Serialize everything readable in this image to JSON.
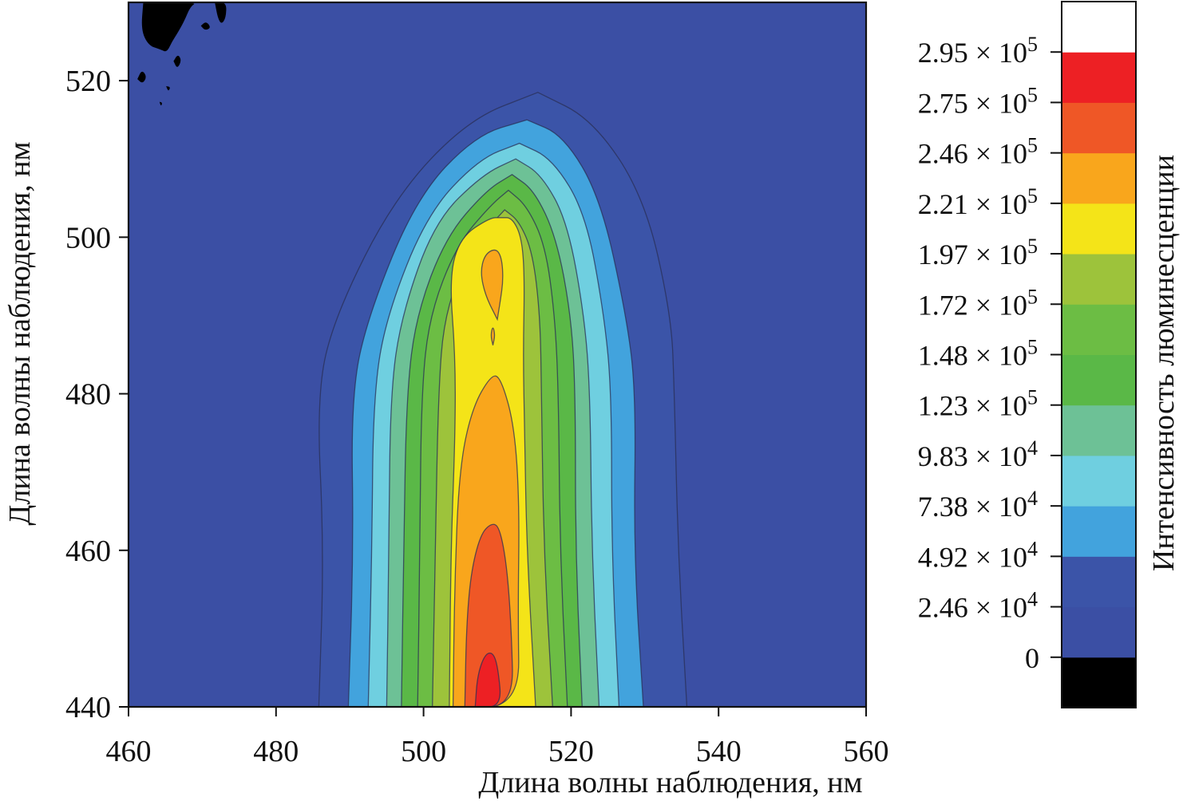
{
  "chart_data": {
    "type": "heatmap",
    "subtype": "filled-contour",
    "xlabel": "Длина волны наблюдения, нм",
    "ylabel": "Длина волны наблюдения, нм",
    "colorbar_label": "Интенсивность люминесценции",
    "xlim": [
      460,
      560
    ],
    "ylim": [
      440,
      530
    ],
    "x_ticks": [
      460,
      480,
      500,
      520,
      540,
      560
    ],
    "y_ticks": [
      440,
      460,
      480,
      500,
      520
    ],
    "x_tick_labels": [
      "460",
      "480",
      "500",
      "520",
      "540",
      "560"
    ],
    "y_tick_labels": [
      "440",
      "460",
      "480",
      "500",
      "520"
    ],
    "levels": [
      {
        "mantissa": "0",
        "exponent": ""
      },
      {
        "mantissa": "2.46 × 10",
        "exponent": "4"
      },
      {
        "mantissa": "4.92 × 10",
        "exponent": "4"
      },
      {
        "mantissa": "7.38 × 10",
        "exponent": "4"
      },
      {
        "mantissa": "9.83 × 10",
        "exponent": "4"
      },
      {
        "mantissa": "1.23 × 10",
        "exponent": "5"
      },
      {
        "mantissa": "1.48 × 10",
        "exponent": "5"
      },
      {
        "mantissa": "1.72 × 10",
        "exponent": "5"
      },
      {
        "mantissa": "1.97 × 10",
        "exponent": "5"
      },
      {
        "mantissa": "2.21 × 10",
        "exponent": "5"
      },
      {
        "mantissa": "2.46 × 10",
        "exponent": "5"
      },
      {
        "mantissa": "2.75 × 10",
        "exponent": "5"
      },
      {
        "mantissa": "2.95 × 10",
        "exponent": "5"
      }
    ],
    "level_values": [
      0,
      24600,
      49200,
      73800,
      98300,
      123000,
      148000,
      172000,
      197000,
      221000,
      246000,
      275000,
      295000
    ],
    "colorbar_colors": [
      "#000000",
      "#3b4fa4",
      "#3b54a8",
      "#42a3dd",
      "#6fcfe0",
      "#6dc196",
      "#5ab847",
      "#6cbd44",
      "#9dc33b",
      "#f4e418",
      "#f9a61c",
      "#ef5726",
      "#ed2024",
      "#ffffff"
    ],
    "contour_regions": [
      {
        "level": 1,
        "color": "#3b54a8",
        "x_left": [
          485.8,
          486.5,
          485.5,
          488,
          496,
          506,
          515.5
        ],
        "x_right": [
          535.7,
          534.5,
          534,
          533.6,
          530,
          523,
          515.5
        ],
        "y": [
          440,
          460,
          480,
          490,
          505,
          515,
          518.5
        ]
      },
      {
        "level": 2,
        "color": "#42a3dd",
        "x_left": [
          489.8,
          490.5,
          490.2,
          492.5,
          499,
          507,
          514
        ],
        "x_right": [
          529.8,
          528.5,
          528.8,
          527.5,
          524,
          519,
          514
        ],
        "y": [
          440,
          460,
          480,
          490,
          505,
          513,
          515
        ]
      },
      {
        "level": 3,
        "color": "#6fcfe0",
        "x_left": [
          492.5,
          493,
          493.2,
          495,
          500.5,
          507.5,
          513
        ],
        "x_right": [
          526.5,
          525.5,
          525.5,
          524.5,
          522,
          517.5,
          513
        ],
        "y": [
          440,
          460,
          480,
          490,
          503,
          510,
          512
        ]
      },
      {
        "level": 4,
        "color": "#6dc196",
        "x_left": [
          495,
          495.3,
          495.5,
          497,
          501.5,
          508,
          512.5
        ],
        "x_right": [
          523.8,
          522.8,
          522.6,
          521.8,
          519.5,
          516,
          512.5
        ],
        "y": [
          440,
          460,
          480,
          490,
          502,
          508,
          510
        ]
      },
      {
        "level": 5,
        "color": "#5ab847",
        "x_left": [
          497,
          497.3,
          497.7,
          499,
          503,
          508.5,
          512
        ],
        "x_right": [
          521.5,
          520.6,
          520.6,
          520,
          518,
          515,
          512
        ],
        "y": [
          440,
          460,
          480,
          490,
          500,
          506,
          508
        ]
      },
      {
        "level": 6,
        "color": "#6cbd44",
        "x_left": [
          499.2,
          499.5,
          499.7,
          500.8,
          504.5,
          509,
          511.5
        ],
        "x_right": [
          519.5,
          518.5,
          518.3,
          517.8,
          516.5,
          514,
          511.5
        ],
        "y": [
          440,
          460,
          480,
          490,
          499,
          504,
          506
        ]
      },
      {
        "level": 7,
        "color": "#9dc33b",
        "x_left": [
          501.2,
          501.6,
          502,
          502.8,
          506,
          509.5,
          511
        ],
        "x_right": [
          517.5,
          516.3,
          516,
          515.8,
          514.8,
          513,
          511
        ],
        "y": [
          440,
          460,
          480,
          490,
          498,
          502,
          503.5
        ]
      },
      {
        "level": 8,
        "color": "#f4e418",
        "x_left": [
          503.5,
          503.7,
          504.3,
          504.3,
          503.5,
          505,
          509,
          510.5
        ],
        "x_right": [
          515.2,
          514,
          513.7,
          513.5,
          513.7,
          513.3,
          512,
          510.5
        ],
        "y": [
          440,
          460,
          475,
          485,
          495,
          500,
          502.5,
          502.5
        ]
      }
    ],
    "inner_regions": [
      {
        "level": 9,
        "color": "#f9a61c",
        "points": [
          [
            504,
            440
          ],
          [
            504.2,
            455
          ],
          [
            504.8,
            470
          ],
          [
            506.5,
            478
          ],
          [
            509.2,
            482.5
          ],
          [
            510.5,
            482
          ],
          [
            512.3,
            476
          ],
          [
            513,
            466
          ],
          [
            512.8,
            452
          ],
          [
            513,
            440
          ]
        ]
      },
      {
        "level": 9,
        "color": "#f9a61c",
        "points": [
          [
            510,
            489.5
          ],
          [
            508.4,
            492.5
          ],
          [
            507.7,
            495.5
          ],
          [
            508.3,
            497.8
          ],
          [
            509.8,
            498.6
          ],
          [
            510.6,
            497.4
          ],
          [
            510.8,
            494.5
          ],
          [
            510.4,
            491.8
          ]
        ]
      },
      {
        "level": 9,
        "color": "#f9a61c",
        "points": [
          [
            509.4,
            486.2
          ],
          [
            509.1,
            487.5
          ],
          [
            509.4,
            488.7
          ],
          [
            509.7,
            487.5
          ]
        ]
      },
      {
        "level": 10,
        "color": "#ef5726",
        "points": [
          [
            505.6,
            440
          ],
          [
            505.8,
            450
          ],
          [
            506.4,
            457
          ],
          [
            507.7,
            462
          ],
          [
            509.2,
            463.5
          ],
          [
            510.3,
            463
          ],
          [
            511.3,
            458
          ],
          [
            511.9,
            450
          ],
          [
            512.2,
            440
          ]
        ]
      },
      {
        "level": 11,
        "color": "#ed2024",
        "points": [
          [
            507,
            440
          ],
          [
            507.3,
            444
          ],
          [
            508.3,
            446.7
          ],
          [
            509.4,
            447
          ],
          [
            510.1,
            445
          ],
          [
            510.6,
            440
          ]
        ]
      }
    ],
    "noise_regions_level0": [
      {
        "points": [
          [
            462,
            530
          ],
          [
            461.7,
            526.5
          ],
          [
            462.7,
            524.5
          ],
          [
            464.3,
            524
          ],
          [
            465.2,
            523.6
          ],
          [
            465.9,
            525
          ],
          [
            466.6,
            526
          ],
          [
            467.5,
            527.5
          ],
          [
            468.4,
            529.5
          ],
          [
            469.3,
            530
          ]
        ]
      },
      {
        "points": [
          [
            466.1,
            522.5
          ],
          [
            466.6,
            521.5
          ],
          [
            467.2,
            522.6
          ],
          [
            466.7,
            523.4
          ]
        ]
      },
      {
        "points": [
          [
            461.2,
            520.2
          ],
          [
            461.9,
            519.6
          ],
          [
            462.5,
            520.5
          ],
          [
            461.8,
            521.4
          ]
        ]
      },
      {
        "points": [
          [
            469.8,
            527
          ],
          [
            470.4,
            526.4
          ],
          [
            471.2,
            526.8
          ],
          [
            470.5,
            527.6
          ]
        ]
      },
      {
        "points": [
          [
            471.7,
            530
          ],
          [
            472.1,
            528
          ],
          [
            472.6,
            527.2
          ],
          [
            473.2,
            528
          ],
          [
            473.3,
            530
          ]
        ]
      },
      {
        "points": [
          [
            465.1,
            519.3
          ],
          [
            465.4,
            518.6
          ],
          [
            465.7,
            519.2
          ]
        ]
      },
      {
        "points": [
          [
            464.2,
            517.3
          ],
          [
            464.4,
            516.7
          ],
          [
            464.6,
            517.2
          ]
        ]
      }
    ]
  }
}
